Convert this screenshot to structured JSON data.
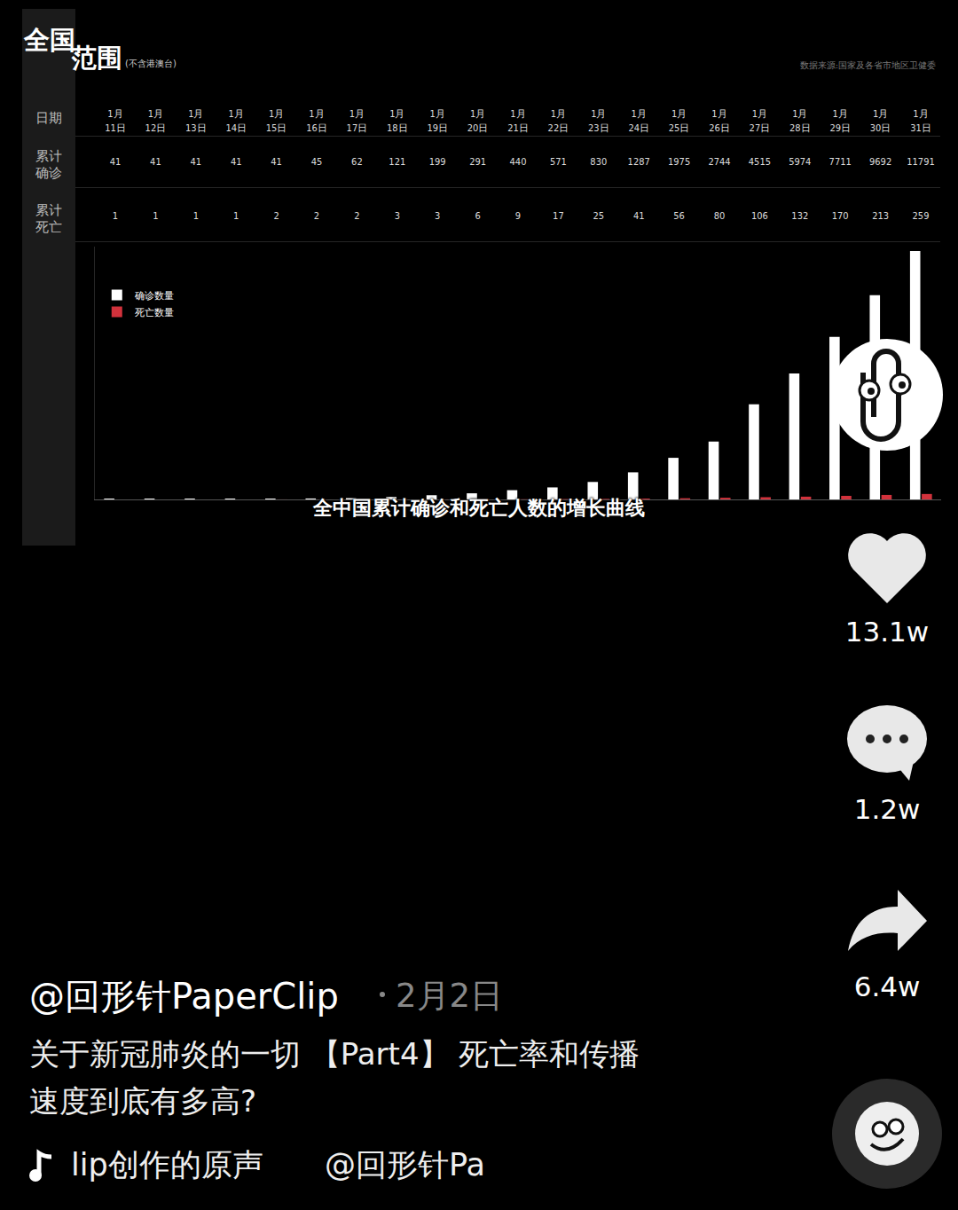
{
  "chart_data": {
    "type": "bar",
    "categories": [
      "1月11日",
      "1月12日",
      "1月13日",
      "1月14日",
      "1月15日",
      "1月16日",
      "1月17日",
      "1月18日",
      "1月19日",
      "1月20日",
      "1月21日",
      "1月22日",
      "1月23日",
      "1月24日",
      "1月25日",
      "1月26日",
      "1月27日",
      "1月28日",
      "1月29日",
      "1月30日",
      "1月31日"
    ],
    "series": [
      {
        "name": "确诊数量",
        "color": "#ffffff",
        "values": [
          41,
          41,
          41,
          41,
          41,
          45,
          62,
          121,
          199,
          291,
          440,
          571,
          830,
          1287,
          1975,
          2744,
          4515,
          5974,
          7711,
          9692,
          11791
        ]
      },
      {
        "name": "死亡数量",
        "color": "#d2323c",
        "values": [
          1,
          1,
          1,
          1,
          2,
          2,
          2,
          3,
          3,
          6,
          9,
          17,
          25,
          41,
          56,
          80,
          106,
          132,
          170,
          213,
          259
        ]
      }
    ],
    "ylim": [
      0,
      12000
    ],
    "yticks": [],
    "tick_labels": false,
    "grid": false,
    "legend": "top left",
    "annotations": [
      "全中国累计确诊和死亡人数的增长曲线"
    ]
  },
  "page": {
    "title": "全国范围",
    "title_note": "(不含港澳台)",
    "source": "数据来源:国家及各省市地区卫健委",
    "row_headers": [
      "日期",
      "累计确诊",
      "累计死亡"
    ],
    "likes": "13.1w",
    "comments": "1.2w",
    "shares": "6.4w",
    "user": "@回形针PaperClip",
    "date": "2月2日",
    "description": [
      "关于新冠肺炎的一切 【Part4】 死亡率和传播",
      "速度到底有多高?"
    ],
    "music": "lip创作的原声",
    "music_user": "@回形针Pa"
  }
}
